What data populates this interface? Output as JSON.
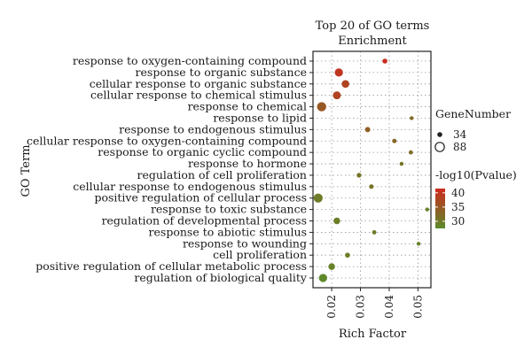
{
  "chart_data": {
    "type": "scatter",
    "title": [
      "Top 20 of GO terms",
      "Enrichment"
    ],
    "xlabel": "Rich Factor",
    "ylabel": "GO Term",
    "xlim": [
      0.0135,
      0.0545
    ],
    "xticks": [
      0.02,
      0.03,
      0.04,
      0.05
    ],
    "xtick_labels": [
      "0.02",
      "0.03",
      "0.04",
      "0.05"
    ],
    "grid": true,
    "legend_position": "right",
    "size_legend": {
      "title": "GeneNumber",
      "entries": [
        {
          "label": "34",
          "value": 34
        },
        {
          "label": "88",
          "value": 88
        }
      ]
    },
    "color_legend": {
      "title": "-log10(Pvalue)",
      "ticks": [
        {
          "label": "40",
          "value": 40
        },
        {
          "label": "35",
          "value": 35
        },
        {
          "label": "30",
          "value": 30
        }
      ],
      "low_color": "#5b8c2a",
      "high_color": "#cc2a1e",
      "range": [
        27.5,
        41.5
      ]
    },
    "terms": [
      {
        "name": "response to oxygen-containing compound",
        "x": 0.0385,
        "genes": 45,
        "neglog10p": 41
      },
      {
        "name": "response to organic substance",
        "x": 0.0225,
        "genes": 78,
        "neglog10p": 40
      },
      {
        "name": "cellular response to organic substance",
        "x": 0.0248,
        "genes": 72,
        "neglog10p": 38
      },
      {
        "name": "cellular response to chemical stimulus",
        "x": 0.0218,
        "genes": 75,
        "neglog10p": 38
      },
      {
        "name": "response to chemical",
        "x": 0.0165,
        "genes": 88,
        "neglog10p": 35
      },
      {
        "name": "response to lipid",
        "x": 0.0478,
        "genes": 34,
        "neglog10p": 32
      },
      {
        "name": "response to endogenous stimulus",
        "x": 0.0325,
        "genes": 48,
        "neglog10p": 34
      },
      {
        "name": "cellular response to oxygen-containing compound",
        "x": 0.0418,
        "genes": 40,
        "neglog10p": 33
      },
      {
        "name": "response to organic cyclic compound",
        "x": 0.0475,
        "genes": 37,
        "neglog10p": 32
      },
      {
        "name": "response to hormone",
        "x": 0.0443,
        "genes": 35,
        "neglog10p": 31
      },
      {
        "name": "regulation of cell proliferation",
        "x": 0.0295,
        "genes": 42,
        "neglog10p": 31
      },
      {
        "name": "cellular response to endogenous stimulus",
        "x": 0.0338,
        "genes": 40,
        "neglog10p": 31
      },
      {
        "name": "positive regulation of cellular process",
        "x": 0.0153,
        "genes": 86,
        "neglog10p": 30
      },
      {
        "name": "response to toxic substance",
        "x": 0.0532,
        "genes": 34,
        "neglog10p": 29
      },
      {
        "name": "regulation of developmental process",
        "x": 0.0218,
        "genes": 62,
        "neglog10p": 29.5
      },
      {
        "name": "response to abiotic stimulus",
        "x": 0.0348,
        "genes": 38,
        "neglog10p": 30
      },
      {
        "name": "response to wounding",
        "x": 0.0502,
        "genes": 34,
        "neglog10p": 29
      },
      {
        "name": "cell proliferation",
        "x": 0.0255,
        "genes": 45,
        "neglog10p": 29.5
      },
      {
        "name": "positive regulation of cellular metabolic process",
        "x": 0.02,
        "genes": 62,
        "neglog10p": 29
      },
      {
        "name": "regulation of biological quality",
        "x": 0.017,
        "genes": 78,
        "neglog10p": 28
      }
    ]
  }
}
